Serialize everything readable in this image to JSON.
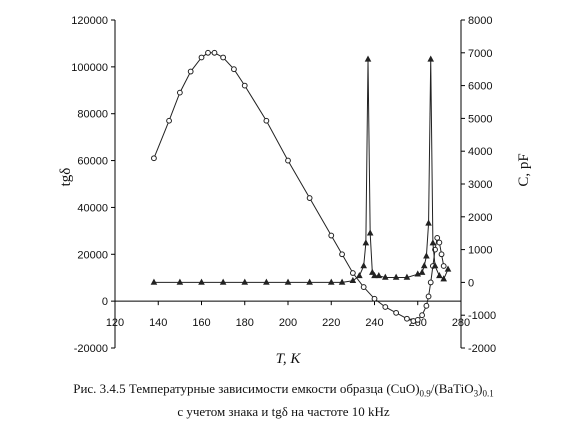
{
  "chart_data": {
    "type": "scatter",
    "title": "",
    "xlabel": "T, K",
    "ylabel_left": "tgδ",
    "ylabel_right": "C, pF",
    "xlim": [
      120,
      280
    ],
    "ylim_left": [
      -20000,
      120000
    ],
    "ylim_right": [
      -2000,
      8000
    ],
    "x_ticks": [
      120,
      140,
      160,
      180,
      200,
      220,
      240,
      260,
      280
    ],
    "y_left_ticks": [
      -20000,
      0,
      20000,
      40000,
      60000,
      80000,
      100000,
      120000
    ],
    "y_right_ticks": [
      -2000,
      -1000,
      0,
      1000,
      2000,
      3000,
      4000,
      5000,
      6000,
      7000,
      8000
    ],
    "grid": false,
    "series": [
      {
        "axis": "left",
        "marker": "circle-open",
        "x": [
          138,
          145,
          150,
          155,
          160,
          163,
          166,
          170,
          175,
          180,
          190,
          200,
          210,
          220,
          225,
          230,
          235,
          240,
          245,
          250,
          255,
          258,
          260,
          262,
          264,
          265,
          266,
          267,
          268,
          269,
          270,
          271,
          272
        ],
        "values": [
          61000,
          77000,
          89000,
          98000,
          104000,
          106000,
          106000,
          104000,
          99000,
          92000,
          77000,
          60000,
          44000,
          28000,
          20000,
          12000,
          6000,
          1000,
          -2500,
          -5000,
          -7500,
          -8500,
          -8000,
          -6000,
          -2000,
          2000,
          8000,
          15000,
          22000,
          27000,
          25000,
          20000,
          15000
        ]
      },
      {
        "axis": "right",
        "marker": "triangle",
        "x": [
          138,
          150,
          160,
          170,
          180,
          190,
          200,
          210,
          220,
          225,
          230,
          233,
          235,
          236,
          237,
          238,
          239,
          240,
          242,
          245,
          250,
          255,
          260,
          262,
          263,
          264,
          265,
          266,
          267,
          268,
          270,
          272,
          274
        ],
        "values": [
          0,
          0,
          0,
          0,
          0,
          0,
          0,
          0,
          0,
          0,
          50,
          200,
          500,
          1200,
          6800,
          1500,
          300,
          200,
          200,
          150,
          150,
          150,
          250,
          300,
          500,
          800,
          1800,
          6800,
          1200,
          500,
          200,
          100,
          400
        ]
      }
    ]
  },
  "caption": {
    "line1_prefix": "Рис. 3.4.5 Температурные зависимости емкости образца (CuO)",
    "sub1": "0.9",
    "line1_mid": "/(BaTiO",
    "sub2": "3",
    "line1_close": ")",
    "sub3": "0.1",
    "line2": "с учетом знака и tgδ на частоте 10 kHz"
  }
}
